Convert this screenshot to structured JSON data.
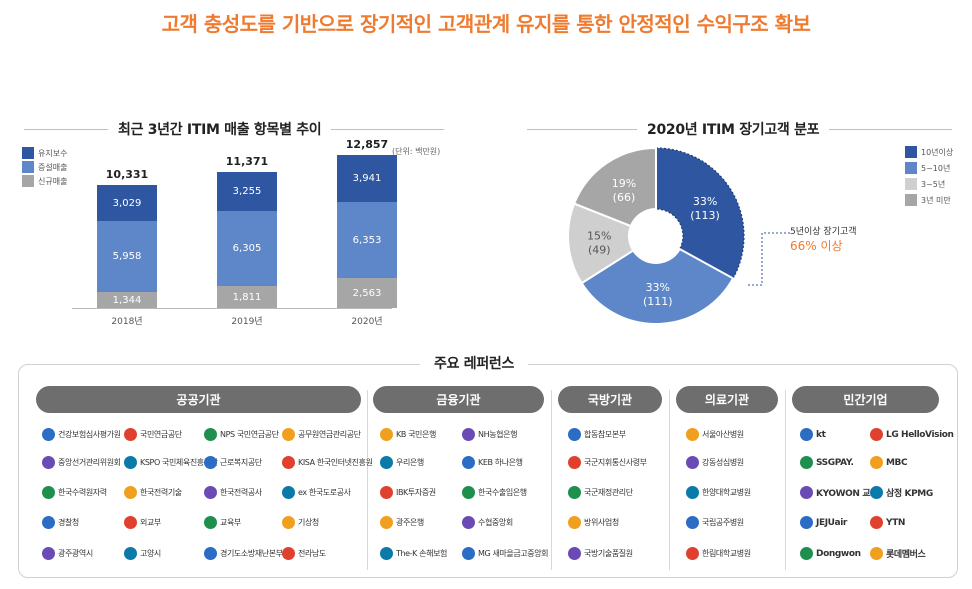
{
  "headline": "고객 충성도를 기반으로 장기적인 고객관계 유지를 통한 안정적인 수익구조 확보",
  "left_chart": {
    "section_title": "최근 3년간 ITIM 매출 항목별 추이",
    "unit": "(단위: 백만원)",
    "legend": [
      {
        "label": "유지보수",
        "color": "#2f56a0"
      },
      {
        "label": "증설매출",
        "color": "#5d87c9"
      },
      {
        "label": "신규매출",
        "color": "#a6a6a6"
      }
    ]
  },
  "chart_data": [
    {
      "type": "bar",
      "stacked": true,
      "categories": [
        "2018년",
        "2019년",
        "2020년"
      ],
      "series": [
        {
          "name": "신규매출",
          "values": [
            1344,
            1811,
            2563
          ],
          "labels": [
            "1,344",
            "1,811",
            "2,563"
          ],
          "color": "#a6a6a6"
        },
        {
          "name": "증설매출",
          "values": [
            5958,
            6305,
            6353
          ],
          "labels": [
            "5,958",
            "6,305",
            "6,353"
          ],
          "color": "#5d87c9"
        },
        {
          "name": "유지보수",
          "values": [
            3029,
            3255,
            3941
          ],
          "labels": [
            "3,029",
            "3,255",
            "3,941"
          ],
          "color": "#2f56a0"
        }
      ],
      "totals": [
        10331,
        11371,
        12857
      ],
      "total_labels": [
        "10,331",
        "11,371",
        "12,857"
      ],
      "title": "최근 3년간 ITIM 매출 항목별 추이",
      "unit": "(단위: 백만원)",
      "ylim": [
        0,
        14000
      ]
    },
    {
      "type": "pie",
      "donut": true,
      "title": "2020년 ITIM 장기고객 분포",
      "slices": [
        {
          "name": "10년이상",
          "percent": 33,
          "count": 113,
          "pct_label": "33%",
          "count_label": "(113)",
          "color": "#2f56a0"
        },
        {
          "name": "5~10년",
          "percent": 33,
          "count": 111,
          "pct_label": "33%",
          "count_label": "(111)",
          "color": "#5d87c9"
        },
        {
          "name": "3~5년",
          "percent": 15,
          "count": 49,
          "pct_label": "15%",
          "count_label": "(49)",
          "color": "#cfcfcf"
        },
        {
          "name": "3년 미만",
          "percent": 19,
          "count": 66,
          "pct_label": "19%",
          "count_label": "(66)",
          "color": "#a6a6a6"
        }
      ],
      "annotation": {
        "line1": "5년이상 장기고객",
        "line2": "66% 이상"
      }
    }
  ],
  "right_chart": {
    "section_title": "2020년 ITIM 장기고객 분포",
    "legend": [
      {
        "label": "10년이상",
        "color": "#2f56a0"
      },
      {
        "label": "5~10년",
        "color": "#5d87c9"
      },
      {
        "label": "3~5년",
        "color": "#cfcfcf"
      },
      {
        "label": "3년 미만",
        "color": "#a6a6a6"
      }
    ]
  },
  "references": {
    "section_title": "주요 레퍼런스",
    "categories": [
      {
        "name": "공공기관",
        "logos": [
          "건강보험심사평가원",
          "국민연금공단",
          "NPS 국민연금공단",
          "공무원연금관리공단",
          "중앙선거관리위원회",
          "KSPO 국민체육진흥공단",
          "근로복지공단",
          "KISA 한국인터넷진흥원",
          "한국수력원자력",
          "한국전력기술",
          "한국전력공사",
          "ex 한국도로공사",
          "경찰청",
          "외교부",
          "교육부",
          "기상청",
          "광주광역시",
          "고양시",
          "경기도소방재난본부",
          "전라남도"
        ]
      },
      {
        "name": "금융기관",
        "logos": [
          "KB 국민은행",
          "NH농협은행",
          "우리은행",
          "KEB 하나은행",
          "IBK투자증권",
          "한국수출입은행",
          "광주은행",
          "수협중앙회",
          "The-K 손해보험",
          "MG 새마을금고중앙회"
        ]
      },
      {
        "name": "국방기관",
        "logos": [
          "합동참모본부",
          "국군지휘통신사령부",
          "국군재정관리단",
          "방위사업청",
          "국방기술품질원"
        ]
      },
      {
        "name": "의료기관",
        "logos": [
          "서울아산병원",
          "강동성심병원",
          "한양대학교병원",
          "국립공주병원",
          "한림대학교병원"
        ]
      },
      {
        "name": "민간기업",
        "logos": [
          "kt",
          "LG HelloVision",
          "SSGPAY.",
          "MBC",
          "KYOWON 교원",
          "삼정 KPMG",
          "JEJUair",
          "YTN",
          "Dongwon",
          "롯데멤버스"
        ]
      }
    ]
  }
}
